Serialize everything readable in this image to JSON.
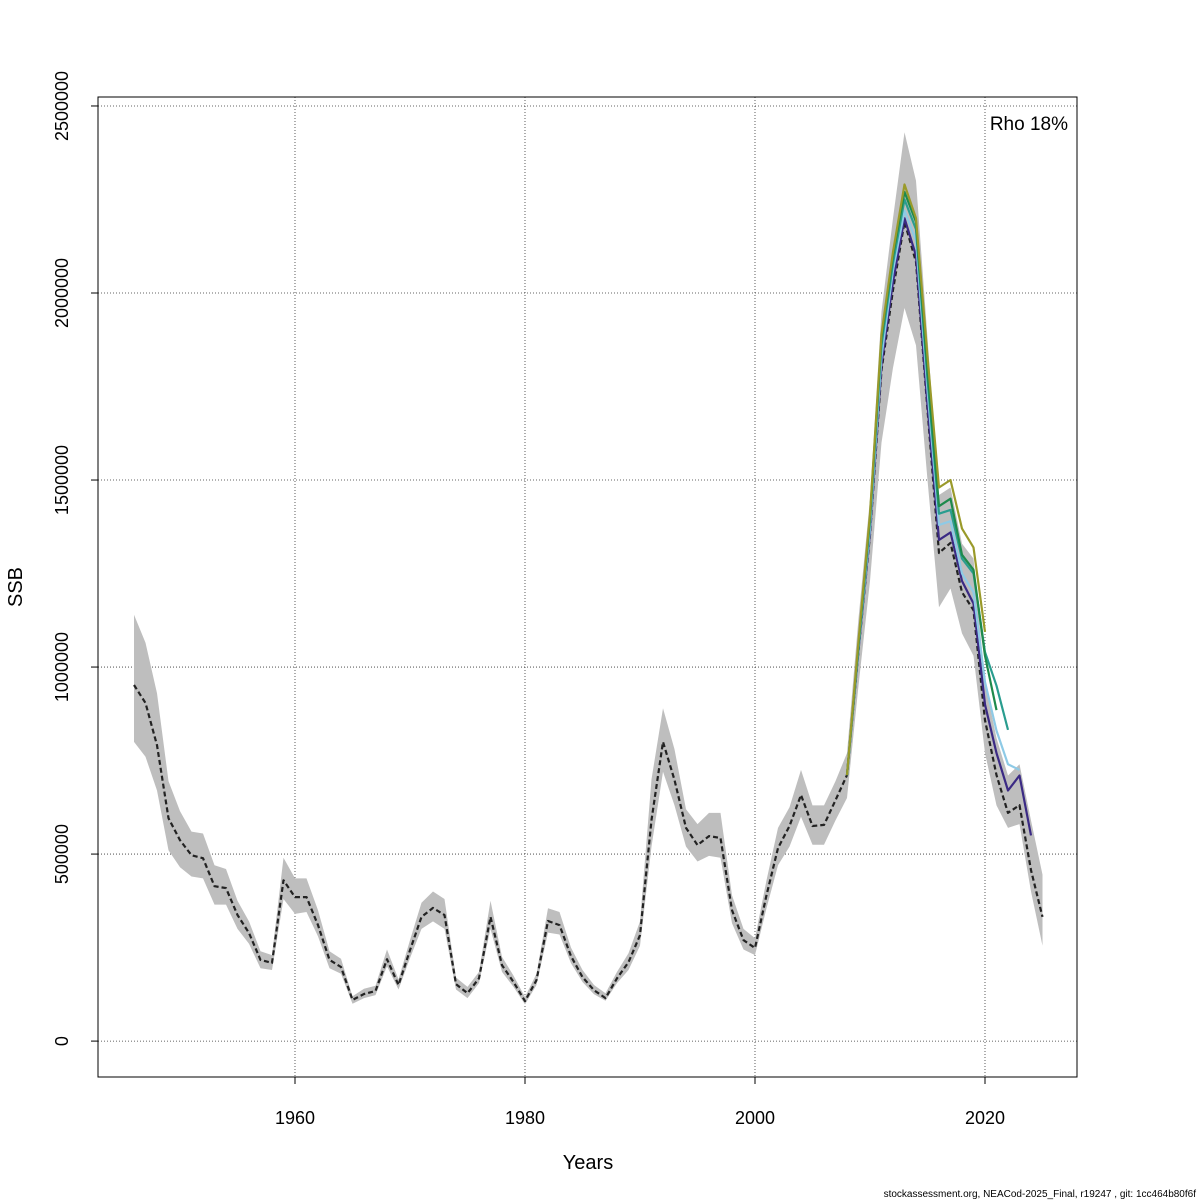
{
  "chart_data": {
    "type": "line",
    "ylabel": "SSB",
    "xlabel": "Years",
    "annotation": "Rho 18%",
    "footer": "stockassessment.org, NEACod-2025_Final, r19247 , git: 1cc464b80f6f",
    "xlim": [
      1942.87,
      2028
    ],
    "ylim": [
      -96000,
      2524000
    ],
    "xticks": [
      1960,
      1980,
      2000,
      2020
    ],
    "yticks": [
      0,
      500000,
      1000000,
      1500000,
      2000000,
      2500000
    ],
    "grid": true,
    "band_color": "#bebebe",
    "x": [
      1946,
      1947,
      1948,
      1949,
      1950,
      1951,
      1952,
      1953,
      1954,
      1955,
      1956,
      1957,
      1958,
      1959,
      1960,
      1961,
      1962,
      1963,
      1964,
      1965,
      1966,
      1967,
      1968,
      1969,
      1970,
      1971,
      1972,
      1973,
      1974,
      1975,
      1976,
      1977,
      1978,
      1979,
      1980,
      1981,
      1982,
      1983,
      1984,
      1985,
      1986,
      1987,
      1988,
      1989,
      1990,
      1991,
      1992,
      1993,
      1994,
      1995,
      1996,
      1997,
      1998,
      1999,
      2000,
      2001,
      2002,
      2003,
      2004,
      2005,
      2006,
      2007,
      2008,
      2009,
      2010,
      2011,
      2012,
      2013,
      2014,
      2015,
      2016,
      2017,
      2018,
      2019,
      2020,
      2021,
      2022,
      2023,
      2024,
      2025
    ],
    "series": [
      {
        "color": "#222222",
        "dashed": true,
        "values": [
          952000,
          904000,
          791000,
          596000,
          537000,
          497000,
          489000,
          414000,
          409000,
          337000,
          289000,
          217000,
          209000,
          430000,
          385000,
          385000,
          310000,
          217000,
          198000,
          110000,
          126000,
          134000,
          219000,
          150000,
          243000,
          332000,
          356000,
          337000,
          152000,
          128000,
          168000,
          332000,
          203000,
          158000,
          107000,
          163000,
          321000,
          310000,
          227000,
          171000,
          136000,
          115000,
          168000,
          211000,
          283000,
          591000,
          800000,
          698000,
          570000,
          524000,
          548000,
          543000,
          350000,
          270000,
          249000,
          390000,
          516000,
          575000,
          658000,
          575000,
          578000,
          644000,
          711000,
          1045000,
          1353000,
          1794000,
          2008000,
          2190000,
          2083000,
          1687000,
          1305000,
          1332000,
          1200000,
          1152000,
          858000,
          711000,
          610000,
          631000,
          457000,
          332000
        ],
        "upper": [
          1140000,
          1065000,
          930000,
          695000,
          615000,
          560000,
          555000,
          470000,
          460000,
          375000,
          320000,
          240000,
          230000,
          490000,
          435000,
          435000,
          350000,
          240000,
          220000,
          120000,
          140000,
          148000,
          245000,
          165000,
          270000,
          370000,
          400000,
          380000,
          170000,
          145000,
          185000,
          375000,
          225000,
          175000,
          118000,
          180000,
          355000,
          345000,
          250000,
          190000,
          150000,
          128000,
          185000,
          235000,
          320000,
          700000,
          890000,
          780000,
          620000,
          580000,
          610000,
          610000,
          390000,
          300000,
          275000,
          430000,
          570000,
          625000,
          725000,
          630000,
          630000,
          695000,
          770000,
          1130000,
          1450000,
          1950000,
          2200000,
          2430000,
          2300000,
          1880000,
          1460000,
          1480000,
          1330000,
          1290000,
          960000,
          810000,
          710000,
          740000,
          590000,
          445000
        ],
        "lower": [
          800000,
          760000,
          670000,
          510000,
          465000,
          440000,
          435000,
          365000,
          365000,
          300000,
          260000,
          195000,
          190000,
          380000,
          340000,
          345000,
          280000,
          195000,
          180000,
          100000,
          115000,
          123000,
          200000,
          138000,
          222000,
          300000,
          320000,
          300000,
          138000,
          115000,
          155000,
          300000,
          185000,
          145000,
          98000,
          150000,
          290000,
          285000,
          208000,
          158000,
          125000,
          108000,
          155000,
          190000,
          255000,
          520000,
          720000,
          630000,
          520000,
          480000,
          495000,
          490000,
          315000,
          245000,
          230000,
          355000,
          470000,
          520000,
          600000,
          525000,
          525000,
          590000,
          650000,
          950000,
          1230000,
          1600000,
          1800000,
          1960000,
          1860000,
          1500000,
          1160000,
          1210000,
          1090000,
          1030000,
          770000,
          630000,
          570000,
          580000,
          400000,
          255000
        ]
      },
      {
        "color": "#3b2a84",
        "x": [
          2008,
          2009,
          2010,
          2011,
          2012,
          2013,
          2014,
          2015,
          2016,
          2017,
          2018,
          2019,
          2020,
          2021,
          2022,
          2023,
          2024
        ],
        "values": [
          711000,
          1045000,
          1360000,
          1810000,
          2030000,
          2200000,
          2100000,
          1700000,
          1340000,
          1360000,
          1230000,
          1170000,
          900000,
          770000,
          670000,
          710000,
          550000
        ]
      },
      {
        "color": "#8ecae6",
        "x": [
          2008,
          2009,
          2010,
          2011,
          2012,
          2013,
          2014,
          2015,
          2016,
          2017,
          2018,
          2019,
          2020,
          2021,
          2022,
          2023
        ],
        "values": [
          711000,
          1050000,
          1370000,
          1830000,
          2060000,
          2220000,
          2140000,
          1740000,
          1380000,
          1390000,
          1250000,
          1200000,
          960000,
          830000,
          740000,
          725000
        ]
      },
      {
        "color": "#2a9d8f",
        "x": [
          2008,
          2009,
          2010,
          2011,
          2012,
          2013,
          2014,
          2015,
          2016,
          2017,
          2018,
          2019,
          2020,
          2021,
          2022
        ],
        "values": [
          711000,
          1055000,
          1390000,
          1860000,
          2080000,
          2250000,
          2170000,
          1770000,
          1410000,
          1420000,
          1290000,
          1250000,
          1040000,
          950000,
          832000
        ]
      },
      {
        "color": "#1e8a4c",
        "x": [
          2008,
          2009,
          2010,
          2011,
          2012,
          2013,
          2014,
          2015,
          2016,
          2017,
          2018,
          2019,
          2020,
          2021
        ],
        "values": [
          711000,
          1060000,
          1400000,
          1880000,
          2100000,
          2270000,
          2190000,
          1790000,
          1430000,
          1450000,
          1300000,
          1260000,
          1030000,
          885000
        ]
      },
      {
        "color": "#9a9a2a",
        "x": [
          2008,
          2009,
          2010,
          2011,
          2012,
          2013,
          2014,
          2015,
          2016,
          2017,
          2018,
          2019,
          2020
        ],
        "values": [
          711000,
          1070000,
          1410000,
          1890000,
          2110000,
          2290000,
          2200000,
          1830000,
          1480000,
          1500000,
          1370000,
          1320000,
          1094000
        ]
      }
    ]
  }
}
